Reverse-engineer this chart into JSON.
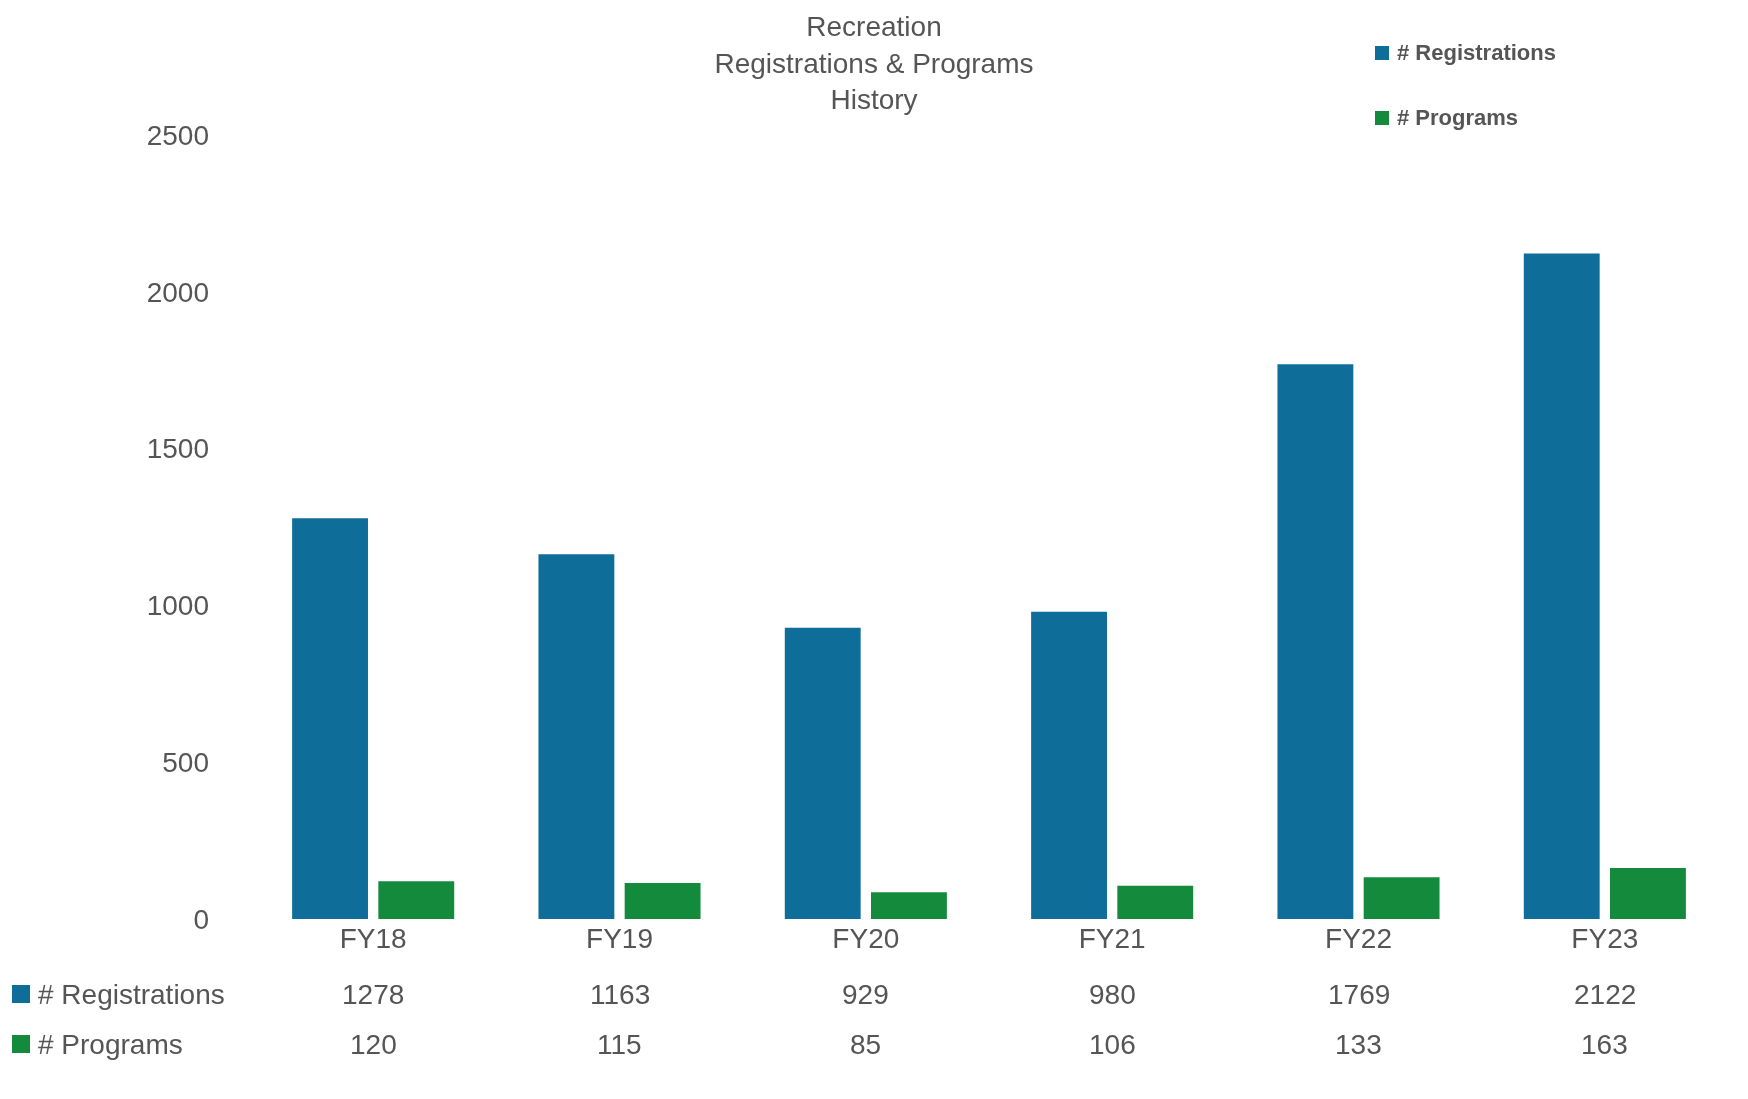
{
  "chart_data": {
    "type": "bar",
    "title": "Recreation\nRegistrations & Programs\nHistory",
    "categories": [
      "FY18",
      "FY19",
      "FY20",
      "FY21",
      "FY22",
      "FY23"
    ],
    "series": [
      {
        "name": "# Registrations",
        "color": "#0f6e99",
        "values": [
          1278,
          1163,
          929,
          980,
          1769,
          2122
        ]
      },
      {
        "name": "# Programs",
        "color": "#138a3c",
        "values": [
          120,
          115,
          85,
          106,
          133,
          163
        ]
      }
    ],
    "ylim": [
      0,
      2500
    ],
    "yticks": [
      0,
      500,
      1000,
      1500,
      2000,
      2500
    ],
    "grid": false,
    "legend": "bottom left",
    "data_labels": true
  }
}
